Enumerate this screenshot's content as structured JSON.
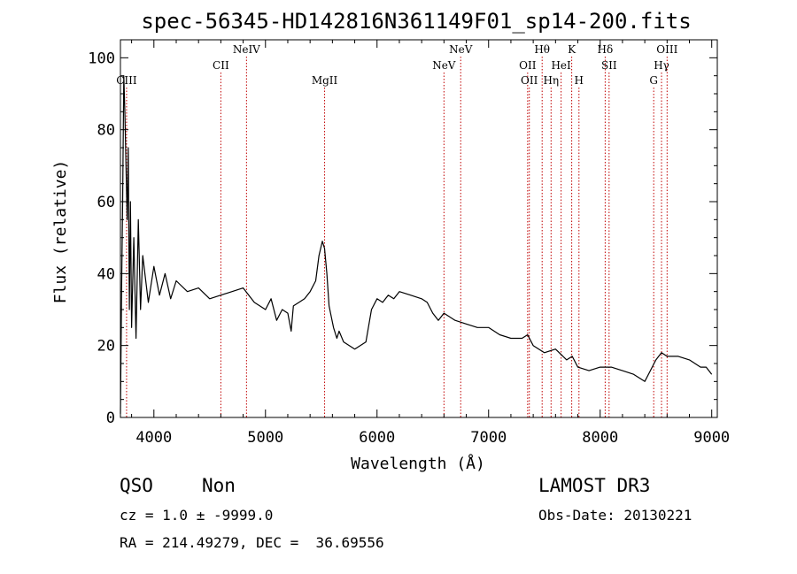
{
  "chart_data": {
    "type": "line",
    "title": "spec-56345-HD142816N361149F01_sp14-200.fits",
    "xlabel": "Wavelength (Å)",
    "ylabel": "Flux (relative)",
    "xlim": [
      3700,
      9050
    ],
    "ylim": [
      0,
      105
    ],
    "xticks": [
      4000,
      5000,
      6000,
      7000,
      8000,
      9000
    ],
    "yticks": [
      0,
      20,
      40,
      60,
      80,
      100
    ],
    "grid": false,
    "series": [
      {
        "x": [
          3700,
          3710,
          3720,
          3730,
          3740,
          3750,
          3760,
          3770,
          3780,
          3790,
          3800,
          3820,
          3840,
          3860,
          3880,
          3900,
          3950,
          4000,
          4050,
          4100,
          4150,
          4200,
          4300,
          4400,
          4500,
          4600,
          4700,
          4800,
          4900,
          5000,
          5050,
          5100,
          5150,
          5200,
          5230,
          5250,
          5300,
          5350,
          5400,
          5450,
          5480,
          5510,
          5530,
          5550,
          5570,
          5590,
          5610,
          5640,
          5660,
          5700,
          5800,
          5900,
          5950,
          6000,
          6050,
          6100,
          6150,
          6200,
          6300,
          6400,
          6450,
          6500,
          6550,
          6600,
          6700,
          6800,
          6900,
          7000,
          7100,
          7200,
          7300,
          7350,
          7400,
          7450,
          7500,
          7600,
          7700,
          7750,
          7800,
          7900,
          8000,
          8100,
          8200,
          8300,
          8350,
          8400,
          8450,
          8500,
          8550,
          8600,
          8700,
          8800,
          8900,
          8950,
          9000
        ],
        "values": [
          1,
          35,
          60,
          95,
          85,
          70,
          55,
          75,
          30,
          60,
          25,
          50,
          22,
          55,
          30,
          45,
          32,
          42,
          34,
          40,
          33,
          38,
          35,
          36,
          33,
          34,
          35,
          36,
          32,
          30,
          33,
          27,
          30,
          29,
          24,
          31,
          32,
          33,
          35,
          38,
          45,
          49,
          47,
          40,
          31,
          28,
          25,
          22,
          24,
          21,
          19,
          21,
          30,
          33,
          32,
          34,
          33,
          35,
          34,
          33,
          32,
          29,
          27,
          29,
          27,
          26,
          25,
          25,
          23,
          22,
          22,
          23,
          20,
          19,
          18,
          19,
          16,
          17,
          14,
          13,
          14,
          14,
          13,
          12,
          11,
          10,
          13,
          16,
          18,
          17,
          17,
          16,
          14,
          14,
          12
        ]
      }
    ],
    "vlines": [
      {
        "label": "CIII",
        "x": 3755,
        "row": 3
      },
      {
        "label": "CII",
        "x": 4600,
        "row": 2
      },
      {
        "label": "NeIV",
        "x": 4830,
        "row": 1
      },
      {
        "label": "MgII",
        "x": 5530,
        "row": 3
      },
      {
        "label": "NeV",
        "x": 6600,
        "row": 2
      },
      {
        "label": "NeV",
        "x": 6750,
        "row": 1
      },
      {
        "label": "OII",
        "x": 7350,
        "row": 2
      },
      {
        "label": "OII",
        "x": 7365,
        "row": 3
      },
      {
        "label": "Hθ",
        "x": 7480,
        "row": 1
      },
      {
        "label": "Hη",
        "x": 7560,
        "row": 3
      },
      {
        "label": "HeI",
        "x": 7650,
        "row": 2
      },
      {
        "label": "K",
        "x": 7745,
        "row": 1
      },
      {
        "label": "H",
        "x": 7810,
        "row": 3
      },
      {
        "label": "Hδ",
        "x": 8045,
        "row": 1
      },
      {
        "label": "SII",
        "x": 8080,
        "row": 2
      },
      {
        "label": "G",
        "x": 8480,
        "row": 3
      },
      {
        "label": "Hγ",
        "x": 8550,
        "row": 2
      },
      {
        "label": "OIII",
        "x": 8600,
        "row": 1
      }
    ]
  },
  "info": {
    "class_label": "QSO",
    "subclass_label": "Non",
    "survey": "LAMOST DR3",
    "cz": "cz = 1.0 ± -9999.0",
    "obs_date": "Obs-Date: 20130221",
    "coords": "RA = 214.49279, DEC =  36.69556"
  },
  "colors": {
    "spectrum": "#000000",
    "line_marker": "#c00000",
    "axis": "#000000"
  }
}
